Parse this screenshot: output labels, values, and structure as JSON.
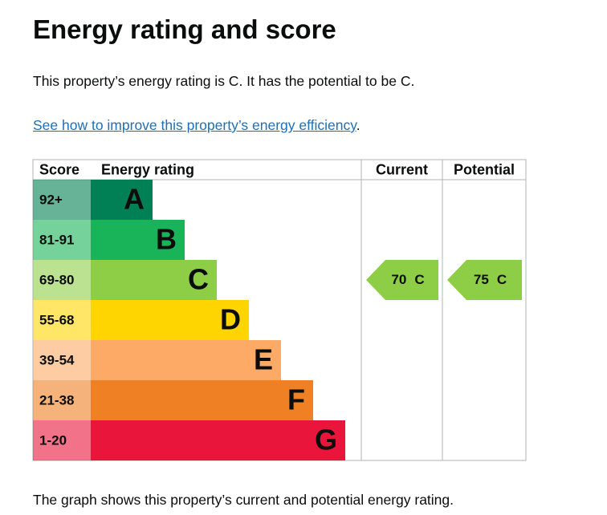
{
  "header": {
    "title": "Energy rating and score"
  },
  "summary": "This property’s energy rating is C. It has the potential to be C.",
  "link": {
    "text": "See how to improve this property’s energy efficiency",
    "after": "."
  },
  "graph": {
    "columns": [
      "Score",
      "Energy rating",
      "Current",
      "Potential"
    ],
    "bands": [
      {
        "score": "92+",
        "rating": "A",
        "color": "#008054"
      },
      {
        "score": "81-91",
        "rating": "B",
        "color": "#19b459"
      },
      {
        "score": "69-80",
        "rating": "C",
        "color": "#8dce46"
      },
      {
        "score": "55-68",
        "rating": "D",
        "color": "#ffd500"
      },
      {
        "score": "39-54",
        "rating": "E",
        "color": "#fcaa65"
      },
      {
        "score": "21-38",
        "rating": "F",
        "color": "#ef8023"
      },
      {
        "score": "1-20",
        "rating": "G",
        "color": "#e9153b"
      }
    ],
    "current": {
      "score": 70,
      "rating": "C"
    },
    "potential": {
      "score": 75,
      "rating": "C"
    }
  },
  "footer": "The graph shows this property’s current and potential energy rating."
}
